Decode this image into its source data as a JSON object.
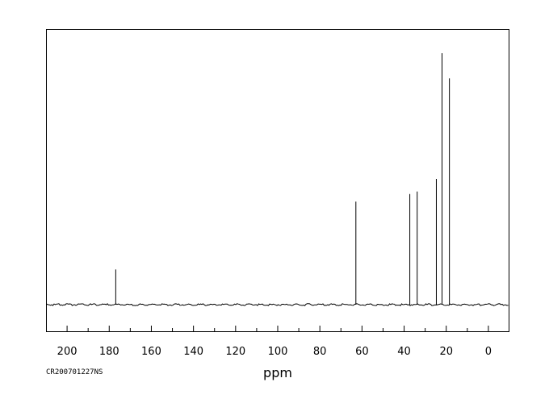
{
  "chart_data": {
    "type": "line",
    "title": "",
    "xlabel": "ppm",
    "ylabel": "",
    "x_reversed": true,
    "xlim": [
      210,
      -10
    ],
    "ylim": [
      -0.1,
      1.0
    ],
    "grid": false,
    "legend": "none",
    "tick_values": [
      200,
      180,
      160,
      140,
      120,
      100,
      80,
      60,
      40,
      20,
      0
    ],
    "tick_labels": [
      "200",
      "180",
      "160",
      "140",
      "120",
      "100",
      "80",
      "60",
      "40",
      "20",
      "0"
    ],
    "series": [
      {
        "peaks": [
          {
            "x": 176.9,
            "y": 0.14
          },
          {
            "x": 62.9,
            "y": 0.41
          },
          {
            "x": 37.3,
            "y": 0.44
          },
          {
            "x": 33.8,
            "y": 0.45
          },
          {
            "x": 24.7,
            "y": 0.5
          },
          {
            "x": 22.0,
            "y": 1.0
          },
          {
            "x": 18.5,
            "y": 0.9
          }
        ]
      }
    ]
  },
  "footer": {
    "sample_id": "CR200701227NS"
  }
}
